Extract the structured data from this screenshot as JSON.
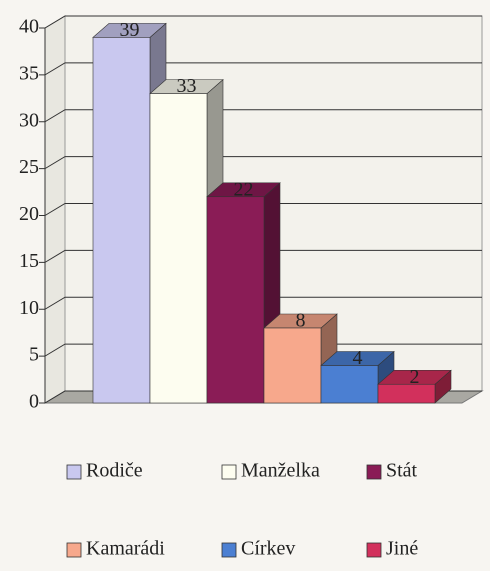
{
  "chart_data": {
    "type": "bar3d",
    "series": [
      {
        "name": "Rodiče",
        "color": "#c9c8ef",
        "values": [
          39
        ]
      },
      {
        "name": "Manželka",
        "color": "#fdfdf0",
        "values": [
          33
        ]
      },
      {
        "name": "Stát",
        "color": "#8a1c56",
        "values": [
          22
        ]
      },
      {
        "name": "Kamarádi",
        "color": "#f7a88c",
        "values": [
          8
        ]
      },
      {
        "name": "Církev",
        "color": "#4b7fd2",
        "values": [
          4
        ]
      },
      {
        "name": "Jiné",
        "color": "#d2305c",
        "values": [
          2
        ]
      }
    ],
    "ylim": [
      0,
      40
    ],
    "yticks": [
      0,
      5,
      10,
      15,
      20,
      25,
      30,
      35,
      40
    ],
    "grid": true,
    "legend": "bottom"
  }
}
